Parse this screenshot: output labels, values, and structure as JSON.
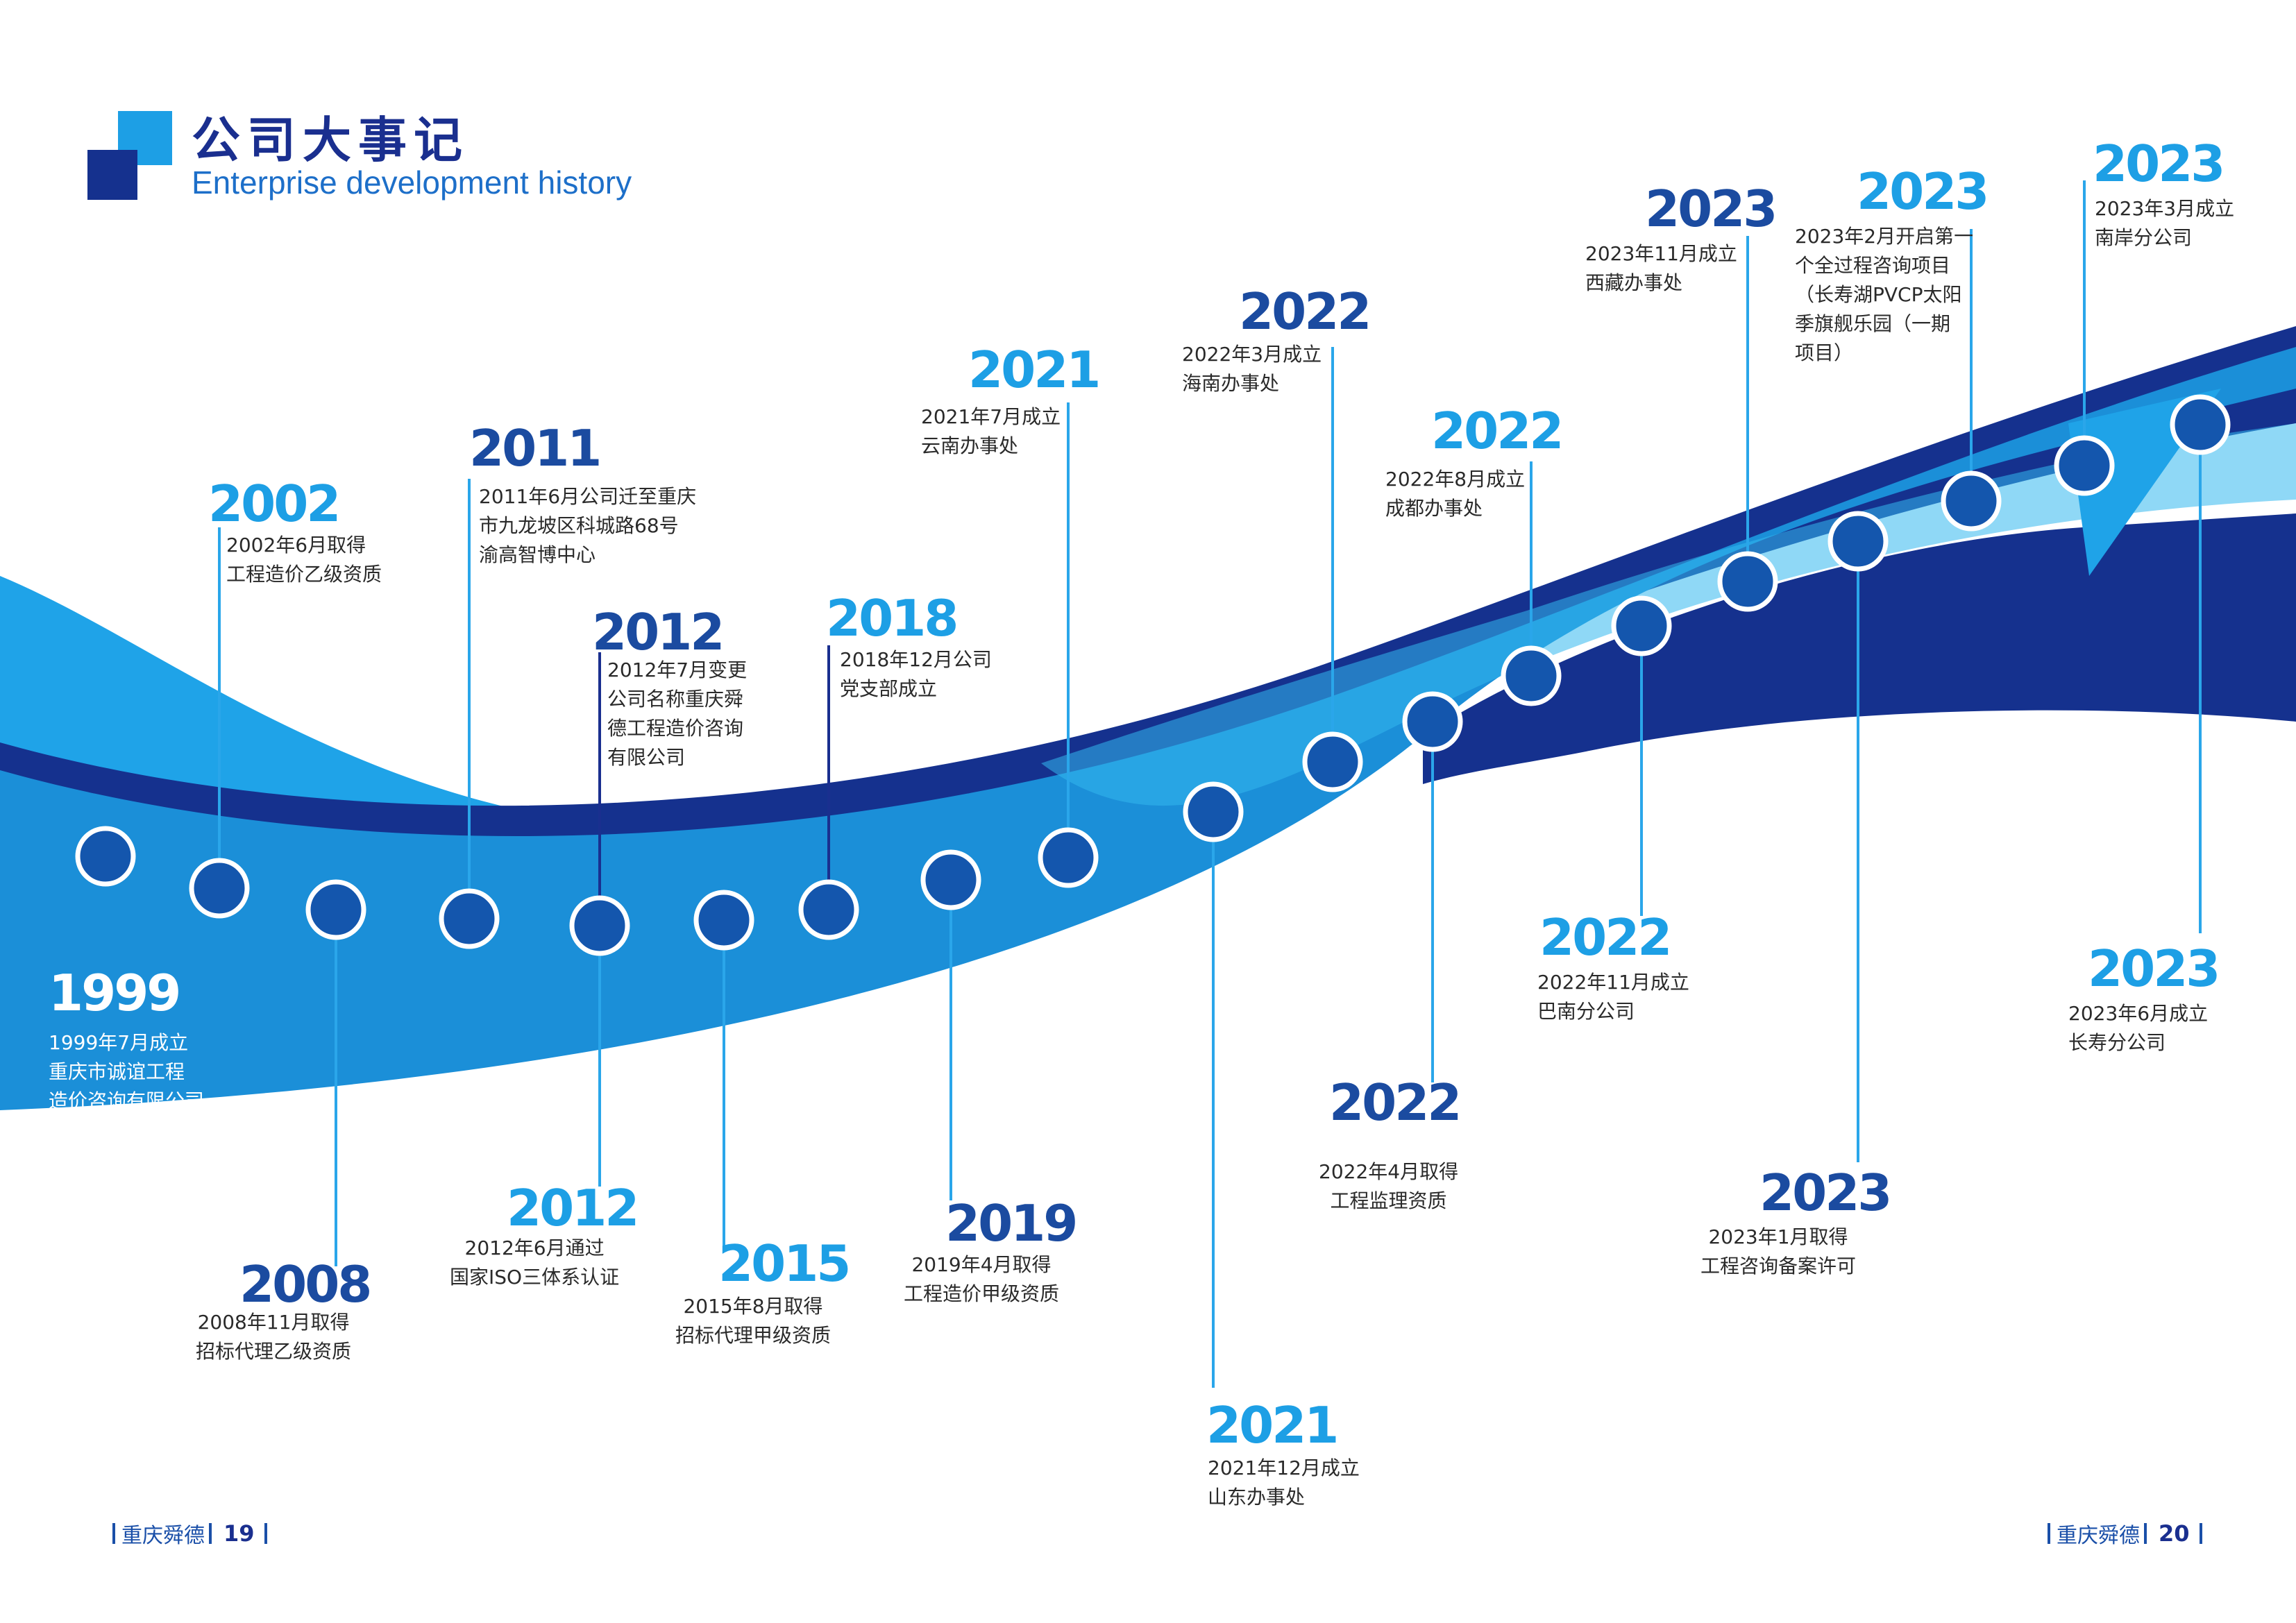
{
  "header": {
    "title_cn": "公司大事记",
    "title_en": "Enterprise development history"
  },
  "colors": {
    "title_navy": "#1a2f8f",
    "year_dark": "#1b4ba0",
    "year_light": "#1d9fe5",
    "wave_light": "#1fa3e8",
    "wave_dark": "#15318e",
    "node_fill": "#1456ad"
  },
  "events": [
    {
      "year": "1999",
      "desc": [
        "1999年7月成立",
        "重庆市诚谊工程",
        "造价咨询有限公司"
      ]
    },
    {
      "year": "2002",
      "desc": [
        "2002年6月取得",
        "工程造价乙级资质"
      ]
    },
    {
      "year": "2008",
      "desc": [
        "2008年11月取得",
        "招标代理乙级资质"
      ]
    },
    {
      "year": "2011",
      "desc": [
        "2011年6月公司迁至重庆",
        "市九龙坡区科城路68号",
        "渝高智博中心"
      ]
    },
    {
      "year": "2012",
      "desc": [
        "2012年7月变更",
        "公司名称重庆舜",
        "德工程造价咨询",
        "有限公司"
      ]
    },
    {
      "year": "2012",
      "desc": [
        "2012年6月通过",
        "国家ISO三体系认证"
      ]
    },
    {
      "year": "2015",
      "desc": [
        "2015年8月取得",
        "招标代理甲级资质"
      ]
    },
    {
      "year": "2018",
      "desc": [
        "2018年12月公司",
        "党支部成立"
      ]
    },
    {
      "year": "2019",
      "desc": [
        "2019年4月取得",
        "工程造价甲级资质"
      ]
    },
    {
      "year": "2021",
      "desc": [
        "2021年7月成立",
        "云南办事处"
      ]
    },
    {
      "year": "2021",
      "desc": [
        "2021年12月成立",
        "山东办事处"
      ]
    },
    {
      "year": "2022",
      "desc": [
        "2022年3月成立",
        "海南办事处"
      ]
    },
    {
      "year": "2022",
      "desc": [
        "2022年4月取得",
        "工程监理资质"
      ]
    },
    {
      "year": "2022",
      "desc": [
        "2022年8月成立",
        "成都办事处"
      ]
    },
    {
      "year": "2022",
      "desc": [
        "2022年11月成立",
        "巴南分公司"
      ]
    },
    {
      "year": "2023",
      "desc": [
        "2023年11月成立",
        "西藏办事处"
      ]
    },
    {
      "year": "2023",
      "desc": [
        "2023年1月取得",
        "工程咨询备案许可"
      ]
    },
    {
      "year": "2023",
      "desc": [
        "2023年2月开启第一",
        "个全过程咨询项目",
        "（长寿湖PVCP太阳",
        "季旗舰乐园（一期",
        "项目）"
      ]
    },
    {
      "year": "2023",
      "desc": [
        "2023年3月成立",
        "南岸分公司"
      ]
    },
    {
      "year": "2023",
      "desc": [
        "2023年6月成立",
        "长寿分公司"
      ]
    }
  ],
  "footer": {
    "left_company": "重庆舜德",
    "left_page": "19",
    "right_company": "重庆舜德",
    "right_page": "20"
  }
}
